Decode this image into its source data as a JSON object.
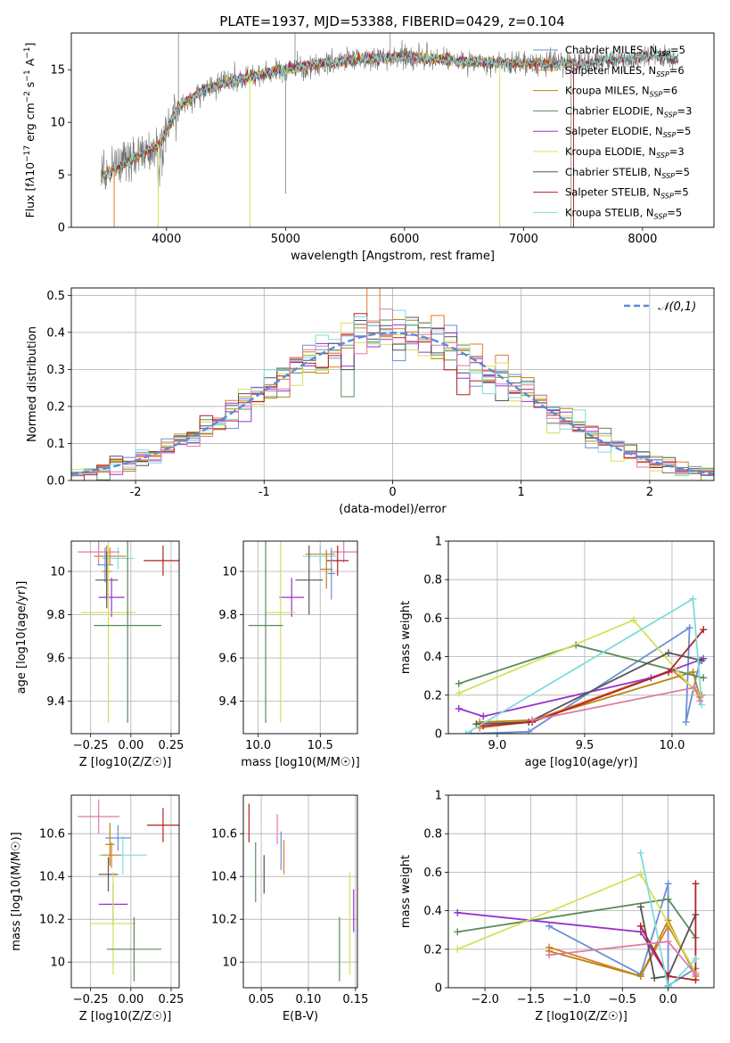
{
  "figure_title": "PLATE=1937, MJD=53388, FIBERID=0429, z=0.104",
  "colors": {
    "chabrier_miles": "#6b8fd6",
    "salpeter_miles": "#e07a2e",
    "kroupa_miles": "#b8860b",
    "chabrier_elodie": "#5b8a5b",
    "salpeter_elodie": "#9932cc",
    "kroupa_elodie": "#d4e157",
    "chabrier_stelib": "#555555",
    "salpeter_stelib": "#b22222",
    "kroupa_stelib": "#7fdbdb",
    "pink": "#e07aa8",
    "normal": "#5b8bd6",
    "grid": "#b0b0b0"
  },
  "chart_data": [
    {
      "id": "spectrum",
      "type": "line",
      "title": "PLATE=1937, MJD=53388, FIBERID=0429, z=0.104",
      "xlabel": "wavelength [Angstrom, rest frame]",
      "ylabel": "Flux [f_λ10^-17 erg cm^-2 s^-1 A^-1]",
      "xlim": [
        3200,
        8600
      ],
      "ylim": [
        0,
        18.5
      ],
      "xticks": [
        4000,
        5000,
        6000,
        7000,
        8000
      ],
      "yticks": [
        0,
        5,
        10,
        15
      ],
      "grid": false,
      "legend_position": "top-right",
      "continuum": {
        "x": [
          3450,
          3600,
          3800,
          3950,
          4100,
          4300,
          4500,
          4800,
          5000,
          5300,
          5600,
          6000,
          6500,
          7000,
          7500,
          8000,
          8300
        ],
        "y": [
          4.8,
          5.8,
          7.0,
          8.0,
          11.5,
          13.0,
          13.8,
          14.6,
          15.0,
          15.6,
          16.0,
          16.2,
          15.8,
          15.6,
          15.6,
          16.3,
          16.0
        ]
      },
      "legend": [
        "Chabrier MILES, N_SSP=5",
        "Salpeter MILES, N_SSP=6",
        "Kroupa MILES, N_SSP=6",
        "Chabrier ELODIE, N_SSP=3",
        "Salpeter ELODIE, N_SSP=5",
        "Kroupa ELODIE, N_SSP=3",
        "Chabrier STELIB, N_SSP=5",
        "Salpeter STELIB, N_SSP=5",
        "Kroupa STELIB, N_SSP=5"
      ]
    },
    {
      "id": "residuals",
      "type": "histogram",
      "xlabel": "(data-model)/error",
      "ylabel": "Normed distribution",
      "xlim": [
        -2.5,
        2.5
      ],
      "ylim": [
        0,
        0.52
      ],
      "xticks": [
        -2,
        -1,
        0,
        1,
        2
      ],
      "yticks": [
        0.0,
        0.1,
        0.2,
        0.3,
        0.4,
        0.5
      ],
      "grid": true,
      "legend": "𝒩(0,1)",
      "legend_position": "top-right",
      "bin_width": 0.1
    },
    {
      "id": "age_vs_z",
      "type": "scatter",
      "xlabel": "Z [log10(Z/Z☉)]",
      "ylabel": "age [log10(age/yr)]",
      "xlim": [
        -0.37,
        0.3
      ],
      "ylim": [
        9.25,
        10.14
      ],
      "xticks": [
        -0.25,
        0.0,
        0.25
      ],
      "xtick_labels": [
        "−0.25",
        "0.00",
        "0.25"
      ],
      "yticks": [
        9.4,
        9.6,
        9.8,
        10.0
      ],
      "grid": true,
      "points": [
        {
          "c": "pink",
          "x": -0.2,
          "xe": 0.13,
          "y": 10.09,
          "ye": 0.06
        },
        {
          "c": "salpeter_stelib",
          "x": 0.2,
          "xe": 0.12,
          "y": 10.05,
          "ye": 0.07
        },
        {
          "c": "salpeter_miles",
          "x": -0.13,
          "xe": 0.1,
          "y": 10.07,
          "ye": 0.04
        },
        {
          "c": "kroupa_stelib",
          "x": -0.08,
          "xe": 0.1,
          "y": 10.06,
          "ye": 0.05
        },
        {
          "c": "chabrier_miles",
          "x": -0.16,
          "xe": 0.05,
          "y": 10.03,
          "ye": 0.08
        },
        {
          "c": "kroupa_miles",
          "x": -0.15,
          "xe": 0.03,
          "y": 10.0,
          "ye": 0.12
        },
        {
          "c": "chabrier_stelib",
          "x": -0.15,
          "xe": 0.07,
          "y": 9.96,
          "ye": 0.13
        },
        {
          "c": "salpeter_elodie",
          "x": -0.12,
          "xe": 0.08,
          "y": 9.88,
          "ye": 0.09
        },
        {
          "c": "kroupa_elodie",
          "x": -0.14,
          "xe": 0.17,
          "y": 9.81,
          "ye": 0.51
        },
        {
          "c": "chabrier_elodie",
          "x": -0.02,
          "xe": 0.21,
          "y": 9.75,
          "ye": 0.45
        }
      ]
    },
    {
      "id": "age_vs_mass",
      "type": "scatter",
      "xlabel": "mass [log10(M/M☉)]",
      "xlim": [
        9.88,
        10.8
      ],
      "ylim": [
        9.25,
        10.14
      ],
      "xticks": [
        10.0,
        10.5
      ],
      "xtick_labels": [
        "10.0",
        "10.5"
      ],
      "yticks": [
        9.4,
        9.6,
        9.8,
        10.0
      ],
      "grid": true,
      "points": [
        {
          "c": "pink",
          "x": 10.69,
          "xe": 0.11,
          "y": 10.09,
          "ye": 0.05
        },
        {
          "c": "salpeter_stelib",
          "x": 10.64,
          "xe": 0.09,
          "y": 10.05,
          "ye": 0.07
        },
        {
          "c": "salpeter_miles",
          "x": 10.5,
          "xe": 0.12,
          "y": 10.08,
          "ye": 0.04
        },
        {
          "c": "kroupa_stelib",
          "x": 10.5,
          "xe": 0.14,
          "y": 10.07,
          "ye": 0.05
        },
        {
          "c": "chabrier_miles",
          "x": 10.59,
          "xe": 0.03,
          "y": 9.99,
          "ye": 0.12
        },
        {
          "c": "kroupa_miles",
          "x": 10.55,
          "xe": 0.05,
          "y": 10.01,
          "ye": 0.09
        },
        {
          "c": "chabrier_stelib",
          "x": 10.41,
          "xe": 0.11,
          "y": 9.96,
          "ye": 0.16
        },
        {
          "c": "salpeter_elodie",
          "x": 10.27,
          "xe": 0.1,
          "y": 9.88,
          "ye": 0.09
        },
        {
          "c": "kroupa_elodie",
          "x": 10.18,
          "xe": 0.12,
          "y": 9.81,
          "ye": 0.51
        },
        {
          "c": "chabrier_elodie",
          "x": 10.06,
          "xe": 0.14,
          "y": 9.75,
          "ye": 0.45
        }
      ]
    },
    {
      "id": "weight_vs_age",
      "type": "line",
      "xlabel": "age [log10(age/yr)]",
      "ylabel": "mass weight",
      "xlim": [
        8.72,
        10.24
      ],
      "ylim": [
        0,
        1.0
      ],
      "xticks": [
        9.0,
        9.5,
        10.0
      ],
      "xtick_labels": [
        "9.0",
        "9.5",
        "10.0"
      ],
      "yticks": [
        0.0,
        0.2,
        0.4,
        0.6,
        0.8,
        1.0
      ],
      "grid": true,
      "series": [
        {
          "c": "chabrier_miles",
          "x": [
            8.85,
            9.18,
            10.1,
            10.08,
            10.16
          ],
          "y": [
            0.0,
            0.01,
            0.55,
            0.06,
            0.38
          ]
        },
        {
          "c": "salpeter_miles",
          "x": [
            8.9,
            9.18,
            10.0,
            10.17
          ],
          "y": [
            0.03,
            0.06,
            0.33,
            0.2
          ]
        },
        {
          "c": "kroupa_miles",
          "x": [
            8.9,
            9.2,
            10.12,
            10.16
          ],
          "y": [
            0.06,
            0.07,
            0.32,
            0.19
          ]
        },
        {
          "c": "chabrier_elodie",
          "x": [
            8.78,
            9.45,
            10.18
          ],
          "y": [
            0.26,
            0.46,
            0.29
          ]
        },
        {
          "c": "salpeter_elodie",
          "x": [
            8.78,
            8.92,
            9.88,
            10.18
          ],
          "y": [
            0.13,
            0.09,
            0.29,
            0.39
          ]
        },
        {
          "c": "kroupa_elodie",
          "x": [
            8.78,
            9.78,
            10.15
          ],
          "y": [
            0.21,
            0.59,
            0.2
          ]
        },
        {
          "c": "chabrier_stelib",
          "x": [
            8.88,
            9.18,
            9.98,
            10.17
          ],
          "y": [
            0.05,
            0.06,
            0.42,
            0.38
          ]
        },
        {
          "c": "salpeter_stelib",
          "x": [
            8.92,
            9.2,
            9.98,
            10.18
          ],
          "y": [
            0.04,
            0.06,
            0.32,
            0.54
          ]
        },
        {
          "c": "kroupa_stelib",
          "x": [
            8.82,
            10.12,
            10.17
          ],
          "y": [
            0.0,
            0.7,
            0.15
          ]
        },
        {
          "c": "pink",
          "x": [
            9.2,
            10.13,
            10.16
          ],
          "y": [
            0.07,
            0.24,
            0.17
          ]
        }
      ]
    },
    {
      "id": "mass_vs_z",
      "type": "scatter",
      "xlabel": "Z [log10(Z/Z☉)]",
      "ylabel": "mass [log10(M/M☉)]",
      "xlim": [
        -0.37,
        0.3
      ],
      "ylim": [
        9.88,
        10.78
      ],
      "xticks": [
        -0.25,
        0.0,
        0.25
      ],
      "xtick_labels": [
        "−0.25",
        "0.00",
        "0.25"
      ],
      "yticks": [
        10.0,
        10.2,
        10.4,
        10.6
      ],
      "grid": true,
      "points": [
        {
          "c": "pink",
          "x": -0.2,
          "xe": 0.13,
          "y": 10.68,
          "ye": 0.08
        },
        {
          "c": "salpeter_stelib",
          "x": 0.2,
          "xe": 0.1,
          "y": 10.64,
          "ye": 0.08
        },
        {
          "c": "chabrier_miles",
          "x": -0.08,
          "xe": 0.08,
          "y": 10.58,
          "ye": 0.06
        },
        {
          "c": "kroupa_stelib",
          "x": -0.05,
          "xe": 0.15,
          "y": 10.5,
          "ye": 0.09
        },
        {
          "c": "salpeter_miles",
          "x": -0.12,
          "xe": 0.06,
          "y": 10.5,
          "ye": 0.06
        },
        {
          "c": "kroupa_miles",
          "x": -0.13,
          "xe": 0.03,
          "y": 10.55,
          "ye": 0.1
        },
        {
          "c": "chabrier_stelib",
          "x": -0.14,
          "xe": 0.06,
          "y": 10.41,
          "ye": 0.08
        },
        {
          "c": "salpeter_elodie",
          "x": -0.11,
          "xe": 0.09,
          "y": 10.27,
          "ye": 0.1
        },
        {
          "c": "kroupa_elodie",
          "x": -0.11,
          "xe": 0.14,
          "y": 10.18,
          "ye": 0.24
        },
        {
          "c": "chabrier_elodie",
          "x": 0.02,
          "xe": 0.17,
          "y": 10.06,
          "ye": 0.15
        }
      ]
    },
    {
      "id": "mass_vs_ebv",
      "type": "scatter",
      "xlabel": "E(B-V)",
      "xlim": [
        0.031,
        0.152
      ],
      "ylim": [
        9.88,
        10.78
      ],
      "xticks": [
        0.05,
        0.1,
        0.15
      ],
      "xtick_labels": [
        "0.05",
        "0.10",
        "0.15"
      ],
      "yticks": [
        10.0,
        10.2,
        10.4,
        10.6
      ],
      "grid": true,
      "points": [
        {
          "c": "salpeter_stelib",
          "x": 0.037,
          "xe": 0,
          "y": 10.65,
          "ye": 0.09
        },
        {
          "c": "chabrier_elodie",
          "x": 0.044,
          "xe": 0,
          "y": 10.42,
          "ye": 0.14
        },
        {
          "c": "chabrier_stelib",
          "x": 0.053,
          "xe": 0,
          "y": 10.41,
          "ye": 0.09
        },
        {
          "c": "pink",
          "x": 0.067,
          "xe": 0,
          "y": 10.62,
          "ye": 0.07
        },
        {
          "c": "chabrier_miles",
          "x": 0.071,
          "xe": 0,
          "y": 10.52,
          "ye": 0.09
        },
        {
          "c": "salpeter_miles",
          "x": 0.074,
          "xe": 0,
          "y": 10.49,
          "ye": 0.08
        },
        {
          "c": "chabrier_elodie",
          "x": 0.133,
          "xe": 0,
          "y": 10.06,
          "ye": 0.15
        },
        {
          "c": "kroupa_elodie",
          "x": 0.144,
          "xe": 0,
          "y": 10.18,
          "ye": 0.24
        },
        {
          "c": "salpeter_elodie",
          "x": 0.148,
          "xe": 0,
          "y": 10.24,
          "ye": 0.1
        }
      ]
    },
    {
      "id": "weight_vs_z",
      "type": "line",
      "xlabel": "Z [log10(Z/Z☉)]",
      "ylabel": "mass weight",
      "xlim": [
        -2.4,
        0.5
      ],
      "ylim": [
        0,
        1.0
      ],
      "xticks": [
        -2.0,
        -1.5,
        -1.0,
        -0.5,
        0.0
      ],
      "xtick_labels": [
        "−2.0",
        "−1.5",
        "−1.0",
        "−0.5",
        "0.0"
      ],
      "yticks": [
        0.0,
        0.2,
        0.4,
        0.6,
        0.8,
        1.0
      ],
      "grid": true,
      "series": [
        {
          "c": "chabrier_miles",
          "x": [
            -1.3,
            -0.3,
            0.0,
            0.0,
            0.3
          ],
          "y": [
            0.32,
            0.07,
            0.54,
            0.01,
            0.1
          ]
        },
        {
          "c": "salpeter_miles",
          "x": [
            -1.3,
            -0.3,
            0.0,
            0.3
          ],
          "y": [
            0.21,
            0.06,
            0.32,
            0.08
          ]
        },
        {
          "c": "kroupa_miles",
          "x": [
            -1.3,
            -0.3,
            0.0,
            0.3
          ],
          "y": [
            0.19,
            0.06,
            0.35,
            0.06
          ]
        },
        {
          "c": "chabrier_elodie",
          "x": [
            -2.3,
            0.0,
            0.3
          ],
          "y": [
            0.29,
            0.46,
            0.26
          ]
        },
        {
          "c": "salpeter_elodie",
          "x": [
            -2.3,
            -0.3,
            0.0
          ],
          "y": [
            0.39,
            0.29,
            0.06
          ]
        },
        {
          "c": "kroupa_elodie",
          "x": [
            -2.3,
            -0.3,
            0.3
          ],
          "y": [
            0.2,
            0.59,
            0.08
          ]
        },
        {
          "c": "chabrier_stelib",
          "x": [
            -0.3,
            -0.15,
            0.0,
            0.3
          ],
          "y": [
            0.42,
            0.05,
            0.06,
            0.38
          ]
        },
        {
          "c": "salpeter_stelib",
          "x": [
            -0.3,
            0.0,
            0.3,
            0.3
          ],
          "y": [
            0.32,
            0.06,
            0.04,
            0.54
          ]
        },
        {
          "c": "kroupa_stelib",
          "x": [
            -0.3,
            0.0,
            0.3
          ],
          "y": [
            0.7,
            0.0,
            0.15
          ]
        },
        {
          "c": "pink",
          "x": [
            -1.3,
            0.0,
            0.3
          ],
          "y": [
            0.17,
            0.24,
            0.07
          ]
        }
      ]
    }
  ]
}
